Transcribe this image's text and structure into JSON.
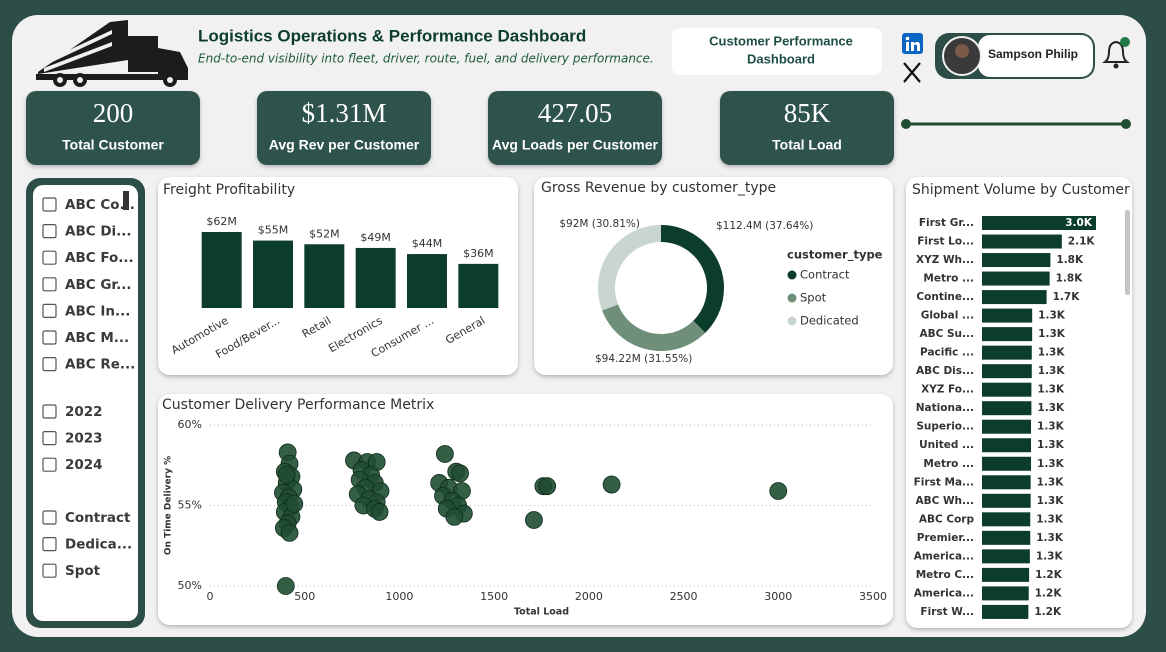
{
  "header": {
    "title": "Logistics Operations & Performance Dashboard",
    "subtitle": "End-to-end visibility into fleet, driver, route, fuel, and delivery performance.",
    "button": {
      "lines": [
        "Customer Performance",
        "Dashboard"
      ]
    },
    "profile_name": "Sampson Philip"
  },
  "kpis": [
    {
      "value": "200",
      "label": "Total Customer"
    },
    {
      "value": "$1.31M",
      "label": "Avg Rev per Customer"
    },
    {
      "value": "427.05",
      "label": "Avg Loads per Customer"
    },
    {
      "value": "85K",
      "label": "Total Load"
    }
  ],
  "filters": {
    "customers": [
      "ABC Co...",
      "ABC Di...",
      "ABC Fo...",
      "ABC Gr...",
      "ABC In...",
      "ABC M...",
      "ABC Re..."
    ],
    "years": [
      "2022",
      "2023",
      "2024"
    ],
    "customer_types": [
      "Contract",
      "Dedica...",
      "Spot"
    ]
  },
  "chart_data": [
    {
      "type": "bar",
      "title": "Freight Profitability",
      "categories": [
        "Automotive",
        "Food/Bever...",
        "Retail",
        "Electronics",
        "Consumer ...",
        "General"
      ],
      "values": [
        62,
        55,
        52,
        49,
        44,
        36
      ],
      "value_labels": [
        "$62M",
        "$55M",
        "$52M",
        "$49M",
        "$44M",
        "$36M"
      ],
      "color": "#0b3d2a"
    },
    {
      "type": "pie",
      "title": "Gross Revenue by customer_type",
      "legend_title": "customer_type",
      "categories": [
        "Contract",
        "Spot",
        "Dedicated"
      ],
      "values": [
        112.4,
        94.22,
        92
      ],
      "value_labels": [
        "$112.4M (37.64%)",
        "$94.22M (31.55%)",
        "$92M (30.81%)"
      ],
      "colors": [
        "#0b3d2a",
        "#6f8f7b",
        "#c9d6cf"
      ],
      "donut": true
    },
    {
      "type": "scatter",
      "title": "Customer Delivery Performance Metrix",
      "x_label": "Total Load",
      "y_label": "On Time Delivery %",
      "color": "#1f4d32",
      "x": [
        410,
        420,
        395,
        430,
        405,
        440,
        385,
        415,
        400,
        425,
        395,
        430,
        410,
        390,
        420,
        405,
        445,
        400,
        760,
        830,
        880,
        800,
        850,
        790,
        870,
        820,
        900,
        780,
        840,
        880,
        810,
        870,
        895,
        1240,
        1300,
        1320,
        1210,
        1260,
        1330,
        1230,
        1280,
        1310,
        1250,
        1340,
        1290,
        1710,
        1760,
        1780,
        2120,
        3000
      ],
      "y": [
        58.3,
        57.6,
        57.1,
        56.8,
        56.4,
        56.0,
        55.8,
        55.5,
        55.2,
        54.9,
        54.6,
        54.3,
        53.9,
        53.6,
        53.3,
        56.9,
        55.1,
        50.0,
        57.8,
        57.7,
        57.7,
        57.2,
        56.9,
        56.6,
        56.4,
        56.1,
        55.9,
        55.7,
        55.4,
        55.2,
        55.0,
        54.8,
        54.6,
        58.2,
        57.1,
        57.0,
        56.4,
        56.1,
        55.9,
        55.6,
        55.3,
        55.0,
        54.8,
        54.5,
        54.3,
        54.1,
        56.2,
        56.2,
        56.3,
        55.9
      ],
      "xlim": [
        0,
        3500
      ],
      "xticks": [
        0,
        500,
        1000,
        1500,
        2000,
        2500,
        3000,
        3500
      ],
      "ylim": [
        50,
        60
      ],
      "yticks": [
        {
          "value": 50,
          "label": "50%"
        },
        {
          "value": 55,
          "label": "55%"
        },
        {
          "value": 60,
          "label": "60%"
        }
      ],
      "grid": true
    },
    {
      "type": "hbar",
      "title": "Shipment Volume by Customer",
      "color": "#0b3d2a",
      "categories": [
        "First Gr...",
        "First Lo...",
        "XYZ Wh...",
        "Metro ...",
        "Contine...",
        "Global ...",
        "ABC Su...",
        "Pacific ...",
        "ABC Dis...",
        "XYZ Fo...",
        "Nationa...",
        "Superio...",
        "United ...",
        "Metro ...",
        "First Ma...",
        "ABC Wh...",
        "ABC Corp",
        "Premier...",
        "America...",
        "Metro C...",
        "America...",
        "First W..."
      ],
      "values": [
        3000,
        2100,
        1800,
        1780,
        1700,
        1320,
        1320,
        1310,
        1310,
        1300,
        1300,
        1290,
        1290,
        1290,
        1280,
        1280,
        1270,
        1270,
        1260,
        1240,
        1230,
        1220
      ],
      "value_labels": [
        "3.0K",
        "2.1K",
        "1.8K",
        "1.8K",
        "1.7K",
        "1.3K",
        "1.3K",
        "1.3K",
        "1.3K",
        "1.3K",
        "1.3K",
        "1.3K",
        "1.3K",
        "1.3K",
        "1.3K",
        "1.3K",
        "1.3K",
        "1.3K",
        "1.3K",
        "1.2K",
        "1.2K",
        "1.2K"
      ]
    }
  ]
}
